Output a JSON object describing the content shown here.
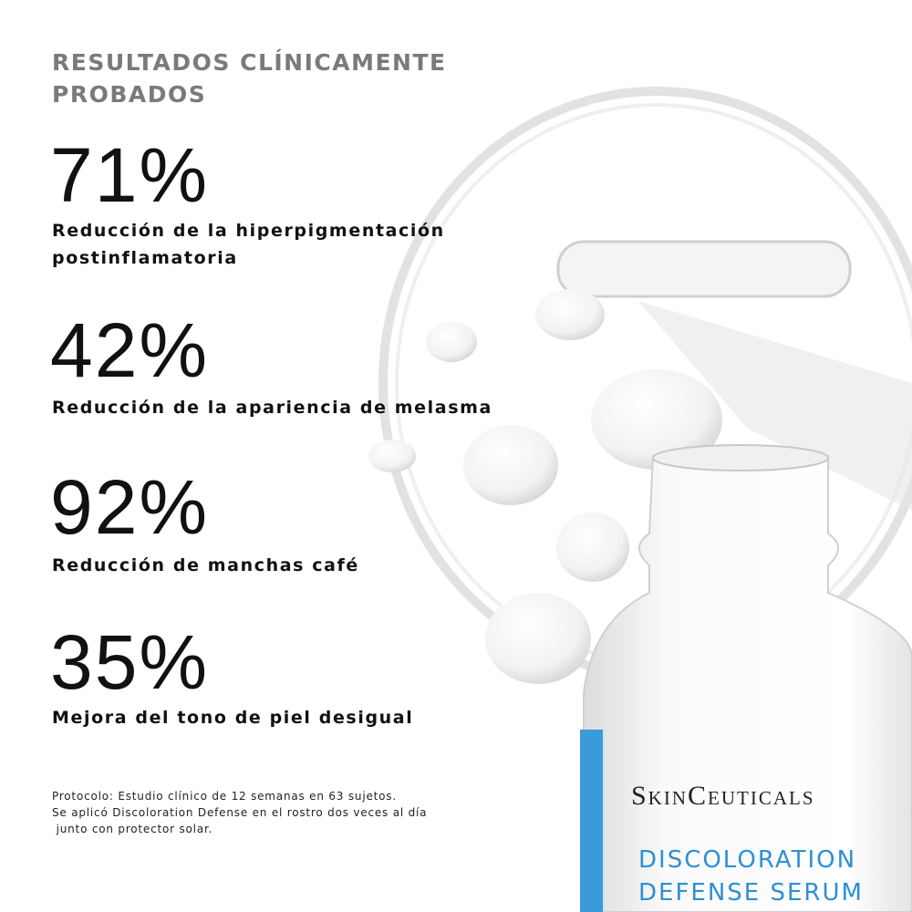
{
  "header": {
    "title_lines": [
      "RESULTADOS CLÍNICAMENTE",
      "PROBADOS"
    ]
  },
  "stats": [
    {
      "value": "71%",
      "description_lines": [
        "Reducción de la hiperpigmentación",
        "postinflamatoria"
      ]
    },
    {
      "value": "42%",
      "description_lines": [
        "Reducción de la apariencia de melasma"
      ]
    },
    {
      "value": "92%",
      "description_lines": [
        "Reducción de manchas café"
      ]
    },
    {
      "value": "35%",
      "description_lines": [
        "Mejora del tono de piel desigual"
      ]
    }
  ],
  "protocol": {
    "lines": [
      "Protocolo: Estudio clínico de 12 semanas en 63 sujetos.",
      "Se aplicó Discoloration Defense en el rostro dos veces al día",
      " junto con protector solar."
    ]
  },
  "product": {
    "brand": "SkinCeuticals",
    "name_lines": [
      "DISCOLORATION",
      "DEFENSE SERUM"
    ]
  }
}
